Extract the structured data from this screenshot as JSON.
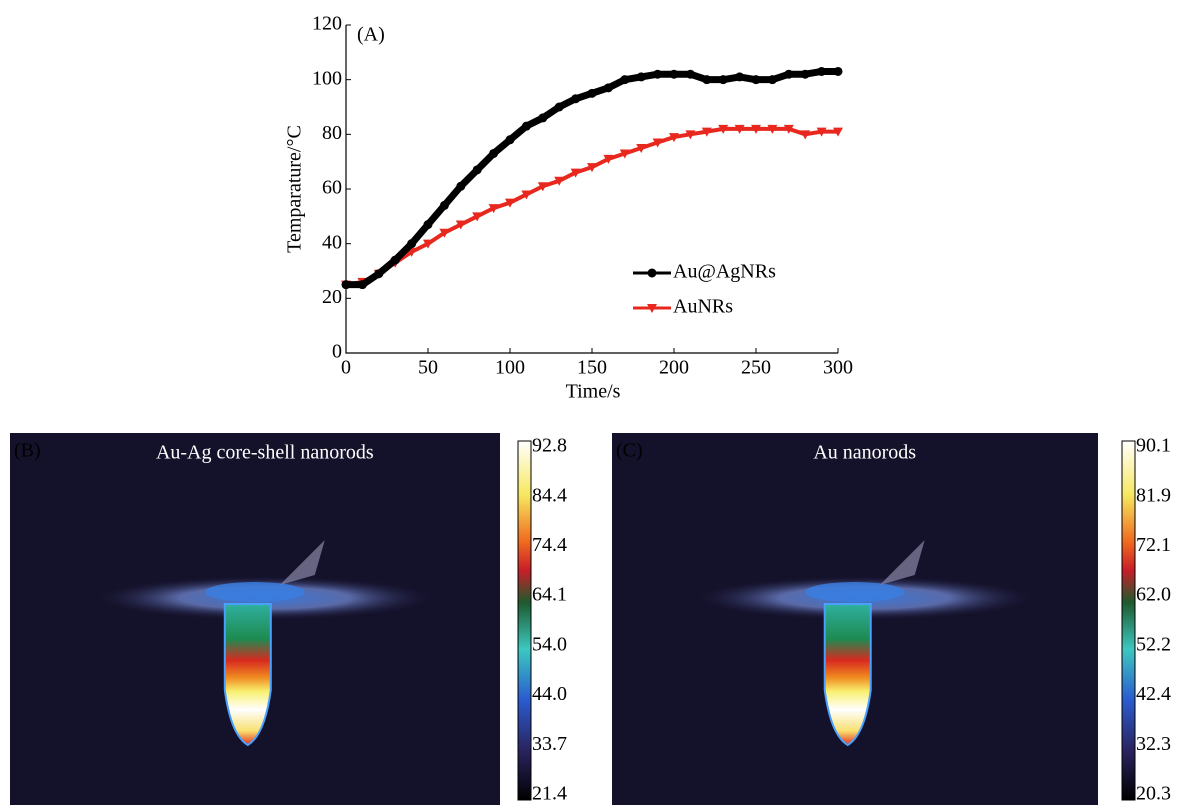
{
  "chart_data": {
    "type": "line",
    "label": "(A)",
    "xlabel": "Time/s",
    "ylabel": "Temparature/°C",
    "x": [
      0,
      10,
      20,
      30,
      40,
      50,
      60,
      70,
      80,
      90,
      100,
      110,
      120,
      130,
      140,
      150,
      160,
      170,
      180,
      190,
      200,
      210,
      220,
      230,
      240,
      250,
      260,
      270,
      280,
      290,
      300
    ],
    "series": [
      {
        "name": "Au@AgNRs",
        "color": "#000000",
        "marker": "circle",
        "values": [
          25,
          25,
          29,
          34,
          40,
          47,
          54,
          61,
          67,
          73,
          78,
          83,
          86,
          90,
          93,
          95,
          97,
          100,
          101,
          102,
          102,
          102,
          100,
          100,
          101,
          100,
          100,
          102,
          102,
          103,
          103
        ]
      },
      {
        "name": "AuNRs",
        "color": "#e8281e",
        "marker": "triangle",
        "values": [
          25,
          26,
          29,
          33,
          37,
          40,
          44,
          47,
          50,
          53,
          55,
          58,
          61,
          63,
          66,
          68,
          71,
          73,
          75,
          77,
          79,
          80,
          81,
          82,
          82,
          82,
          82,
          82,
          80,
          81,
          81
        ]
      }
    ],
    "xlim": [
      0,
      300
    ],
    "ylim": [
      0,
      120
    ],
    "xticks": [
      0,
      50,
      100,
      150,
      200,
      250,
      300
    ],
    "yticks": [
      0,
      20,
      40,
      60,
      80,
      100,
      120
    ],
    "legend": "lower right"
  },
  "panels": [
    {
      "label": "(B)",
      "title": "Au-Ag core-shell nanorods",
      "colorbar": [
        92.8,
        84.4,
        74.4,
        64.1,
        {
          "value": 54,
          "label": "54.0"
        },
        {
          "value": 44,
          "label": "44.0"
        },
        33.7,
        21.4
      ]
    },
    {
      "label": "(C)",
      "title": "Au nanorods",
      "colorbar": [
        90.1,
        81.9,
        72.1,
        {
          "value": 62,
          "label": "62.0"
        },
        52.2,
        42.4,
        32.3,
        20.3
      ]
    }
  ]
}
